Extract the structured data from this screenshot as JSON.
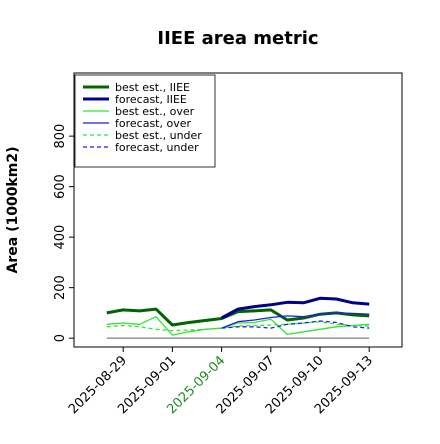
{
  "chart_data": {
    "type": "line",
    "title": "IIEE area metric",
    "ylabel": "Area (1000km2)",
    "x": [
      "2025-08-28",
      "2025-08-29",
      "2025-08-30",
      "2025-08-31",
      "2025-09-01",
      "2025-09-02",
      "2025-09-03",
      "2025-09-04",
      "2025-09-05",
      "2025-09-06",
      "2025-09-07",
      "2025-09-08",
      "2025-09-09",
      "2025-09-10",
      "2025-09-11",
      "2025-09-12",
      "2025-09-13"
    ],
    "xlim": [
      "2025-08-26",
      "2025-09-15"
    ],
    "xticks": [
      "2025-08-29",
      "2025-09-01",
      "2025-09-04",
      "2025-09-07",
      "2025-09-10",
      "2025-09-13"
    ],
    "xtick_colors": [
      "#000000",
      "#000000",
      "#228b22",
      "#000000",
      "#000000",
      "#000000"
    ],
    "ylim": [
      -35,
      1050
    ],
    "yticks": [
      0,
      200,
      400,
      600,
      800
    ],
    "hline": 0,
    "legend": "upper left",
    "series": [
      {
        "name": "best est., IIEE",
        "color": "#006400",
        "width": 3,
        "dash": "solid",
        "values": [
          100,
          112,
          108,
          115,
          52,
          62,
          70,
          78,
          105,
          108,
          112,
          72,
          80,
          95,
          100,
          92,
          88
        ]
      },
      {
        "name": "forecast, IIEE",
        "color": "#00008b",
        "width": 3,
        "dash": "solid",
        "values": [
          null,
          null,
          null,
          null,
          null,
          null,
          null,
          80,
          115,
          125,
          132,
          142,
          140,
          158,
          155,
          140,
          135
        ]
      },
      {
        "name": "best est., over",
        "color": "#32e632",
        "width": 1.3,
        "dash": "solid",
        "values": [
          55,
          60,
          55,
          85,
          12,
          25,
          35,
          40,
          60,
          62,
          75,
          15,
          25,
          35,
          45,
          50,
          55
        ]
      },
      {
        "name": "forecast, over",
        "color": "#1f1fe0",
        "width": 1.3,
        "dash": "solid",
        "values": [
          null,
          null,
          null,
          null,
          null,
          null,
          null,
          40,
          65,
          72,
          82,
          88,
          85,
          95,
          100,
          98,
          95
        ]
      },
      {
        "name": "best est., under",
        "color": "#32e632",
        "width": 1.3,
        "dash": "dashed",
        "values": [
          45,
          50,
          45,
          35,
          30,
          32,
          35,
          40,
          48,
          50,
          52,
          55,
          60,
          65,
          55,
          50,
          48
        ]
      },
      {
        "name": "forecast, under",
        "color": "#1f1fe0",
        "width": 1.3,
        "dash": "dashed",
        "values": [
          null,
          null,
          null,
          null,
          null,
          null,
          null,
          40,
          45,
          45,
          40,
          55,
          60,
          68,
          62,
          45,
          40
        ]
      }
    ]
  }
}
